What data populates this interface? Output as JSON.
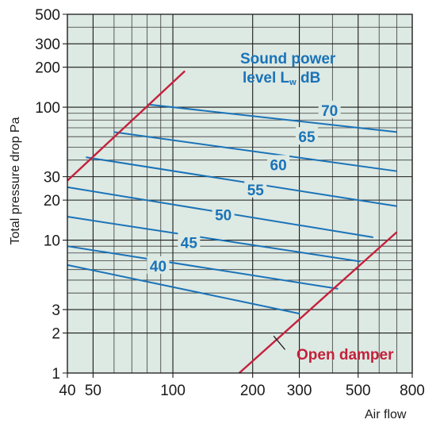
{
  "chart_data": {
    "type": "line",
    "xscale": "log",
    "yscale": "log",
    "xlim": [
      40,
      800
    ],
    "ylim": [
      1,
      500
    ],
    "grid": true,
    "xlabel": "Air flow",
    "ylabel": "Total pressure drop Pa",
    "xticks": [
      40,
      50,
      100,
      200,
      300,
      500,
      800
    ],
    "xminor": [
      60,
      70,
      80,
      90,
      400,
      600,
      700
    ],
    "yticks": [
      1,
      2,
      3,
      10,
      20,
      30,
      100,
      200,
      300,
      500
    ],
    "yminor": [
      4,
      5,
      6,
      7,
      8,
      9,
      40,
      50,
      60,
      70,
      80,
      90,
      400
    ],
    "legend_title": {
      "main": "Sound power",
      "sub_prefix": "level L",
      "sub_subscript": "w",
      "sub_suffix": " dB"
    },
    "background": "#dde9e3",
    "series_color": "#1a73b8",
    "damper_color": "#c4213b",
    "series": [
      {
        "name": "70",
        "x": [
          80,
          700
        ],
        "y": [
          105,
          65
        ]
      },
      {
        "name": "65",
        "x": [
          60,
          700
        ],
        "y": [
          65,
          33
        ]
      },
      {
        "name": "60",
        "x": [
          47,
          700
        ],
        "y": [
          42,
          18
        ]
      },
      {
        "name": "55",
        "x": [
          40,
          570
        ],
        "y": [
          25,
          10.5
        ]
      },
      {
        "name": "50",
        "x": [
          40,
          510
        ],
        "y": [
          15,
          6.9
        ]
      },
      {
        "name": "45",
        "x": [
          40,
          420
        ],
        "y": [
          9,
          4.3
        ]
      },
      {
        "name": "40",
        "x": [
          40,
          300
        ],
        "y": [
          6.5,
          2.8
        ]
      }
    ],
    "series_labels": [
      {
        "text": "70",
        "x": 390,
        "y": 95
      },
      {
        "text": "65",
        "x": 320,
        "y": 60
      },
      {
        "text": "60",
        "x": 250,
        "y": 37
      },
      {
        "text": "55",
        "x": 205,
        "y": 24
      },
      {
        "text": "50",
        "x": 155,
        "y": 15.5
      },
      {
        "text": "45",
        "x": 115,
        "y": 9.6
      },
      {
        "text": "40",
        "x": 88,
        "y": 6.4
      }
    ],
    "damper_lines": [
      {
        "x": [
          40,
          111
        ],
        "y": [
          28,
          187
        ]
      },
      {
        "x": [
          178,
          700
        ],
        "y": [
          1,
          11.5
        ]
      }
    ],
    "damper_label": "Open damper",
    "damper_leader": {
      "x": [
        240,
        265
      ],
      "y": [
        1.9,
        1.5
      ]
    }
  }
}
